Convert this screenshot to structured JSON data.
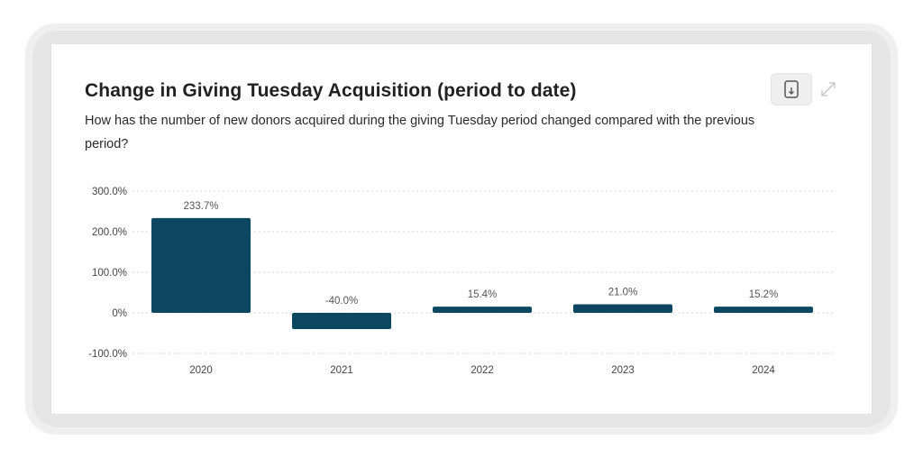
{
  "header": {
    "title": "Change in Giving Tuesday Acquisition (period to date)",
    "subtitle": "How has the number of new donors acquired during the giving Tuesday period changed compared with the previous period?"
  },
  "toolbar": {
    "export_icon": "download-icon",
    "expand_icon": "expand-icon"
  },
  "colors": {
    "bar": "#0c4660",
    "grid": "#d6d6d6",
    "title": "#222222"
  },
  "chart_data": {
    "type": "bar",
    "title": "Change in Giving Tuesday Acquisition (period to date)",
    "xlabel": "",
    "ylabel": "",
    "categories": [
      "2020",
      "2021",
      "2022",
      "2023",
      "2024"
    ],
    "values": [
      233.7,
      -40.0,
      15.4,
      21.0,
      15.2
    ],
    "value_labels": [
      "233.7%",
      "-40.0%",
      "15.4%",
      "21.0%",
      "15.2%"
    ],
    "yticks": [
      300,
      200,
      100,
      0,
      -100
    ],
    "ytick_labels": [
      "300.0%",
      "200.0%",
      "100.0%",
      "0%",
      "-100.0%"
    ],
    "ylim": [
      -100,
      300
    ],
    "grid": true,
    "legend": "none"
  }
}
